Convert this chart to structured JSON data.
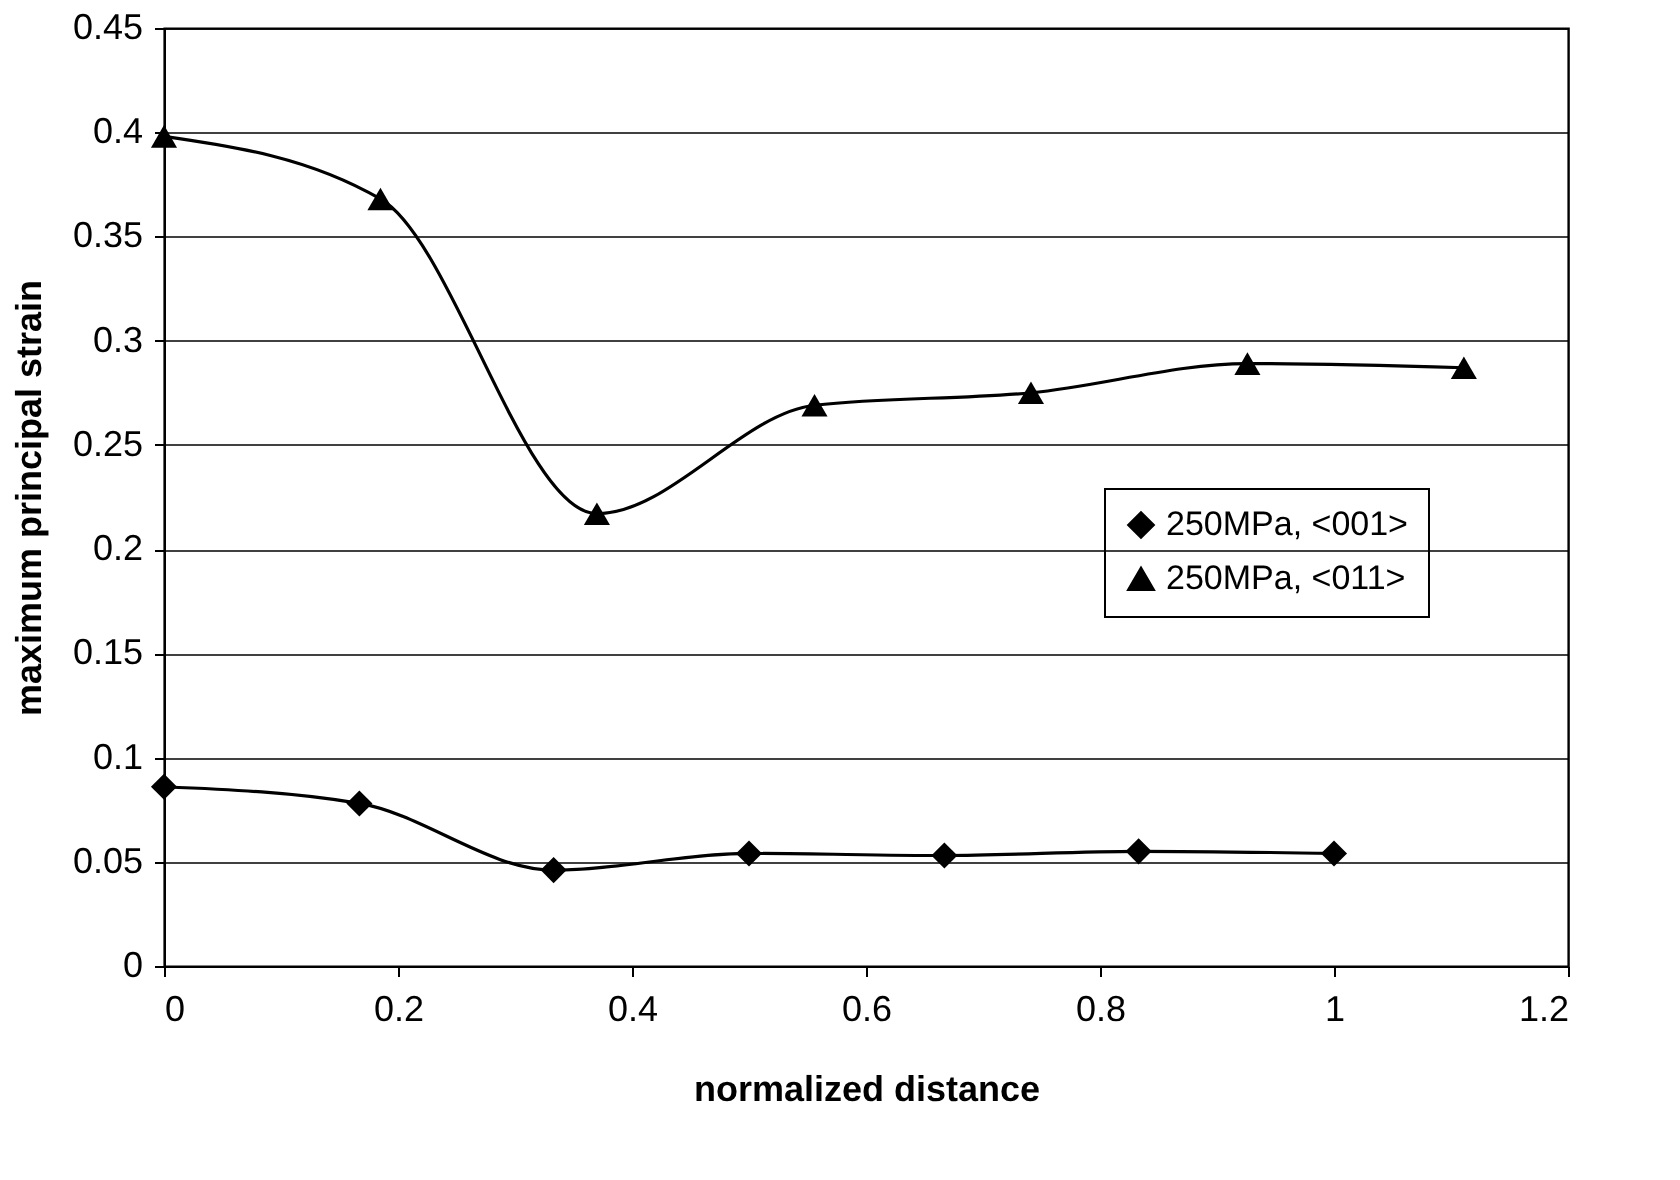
{
  "chart_data": {
    "type": "line",
    "xlabel": "normalized distance",
    "ylabel": "maximum principal strain",
    "xlim": [
      0,
      1.2
    ],
    "xticks": [
      0,
      0.2,
      0.4,
      0.6,
      0.8,
      1,
      1.2
    ],
    "ylim": [
      0,
      0.45
    ],
    "yticks": [
      0,
      0.05,
      0.1,
      0.15,
      0.2,
      0.25,
      0.3,
      0.35,
      0.4,
      0.45
    ],
    "grid": "y",
    "legend": "right",
    "series": [
      {
        "name": "250MPa, <001>",
        "color": "#000000",
        "marker": "diamond",
        "x": [
          0,
          0.167,
          0.333,
          0.5,
          0.667,
          0.833,
          1
        ],
        "values": [
          0.086,
          0.078,
          0.046,
          0.054,
          0.053,
          0.055,
          0.054
        ]
      },
      {
        "name": "250MPa, <011>",
        "color": "#000000",
        "marker": "triangle",
        "x": [
          0,
          0.185,
          0.37,
          0.556,
          0.741,
          0.926,
          1.111
        ],
        "values": [
          0.398,
          0.368,
          0.217,
          0.269,
          0.275,
          0.289,
          0.287
        ]
      }
    ]
  }
}
